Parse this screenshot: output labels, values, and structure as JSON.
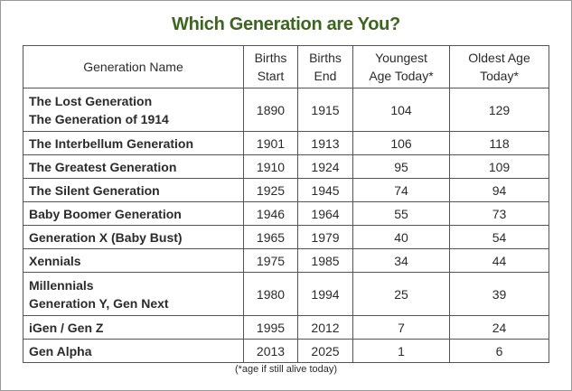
{
  "title": "Which Generation are You?",
  "columns": [
    [
      "Generation Name"
    ],
    [
      "Births",
      "Start"
    ],
    [
      "Births",
      "End"
    ],
    [
      "Youngest",
      "Age Today*"
    ],
    [
      "Oldest Age",
      "Today*"
    ]
  ],
  "rows": [
    {
      "name": [
        "The Lost Generation",
        "The Generation of 1914"
      ],
      "start": "1890",
      "end": "1915",
      "youngest": "104",
      "oldest": "129"
    },
    {
      "name": [
        "The Interbellum Generation"
      ],
      "start": "1901",
      "end": "1913",
      "youngest": "106",
      "oldest": "118"
    },
    {
      "name": [
        "The Greatest Generation"
      ],
      "start": "1910",
      "end": "1924",
      "youngest": "95",
      "oldest": "109"
    },
    {
      "name": [
        "The Silent Generation"
      ],
      "start": "1925",
      "end": "1945",
      "youngest": "74",
      "oldest": "94"
    },
    {
      "name": [
        "Baby Boomer Generation"
      ],
      "start": "1946",
      "end": "1964",
      "youngest": "55",
      "oldest": "73"
    },
    {
      "name": [
        "Generation X (Baby Bust)"
      ],
      "start": "1965",
      "end": "1979",
      "youngest": "40",
      "oldest": "54"
    },
    {
      "name": [
        "Xennials"
      ],
      "start": "1975",
      "end": "1985",
      "youngest": "34",
      "oldest": "44"
    },
    {
      "name": [
        "Millennials",
        "Generation Y, Gen Next"
      ],
      "start": "1980",
      "end": "1994",
      "youngest": "25",
      "oldest": "39"
    },
    {
      "name": [
        "iGen / Gen Z"
      ],
      "start": "1995",
      "end": "2012",
      "youngest": "7",
      "oldest": "24"
    },
    {
      "name": [
        "Gen Alpha"
      ],
      "start": "2013",
      "end": "2025",
      "youngest": "1",
      "oldest": "6"
    }
  ],
  "footnote": "(*age if still alive today)",
  "colors": {
    "title": "#3d6520",
    "text": "#2b2b2b",
    "border": "#555555"
  }
}
